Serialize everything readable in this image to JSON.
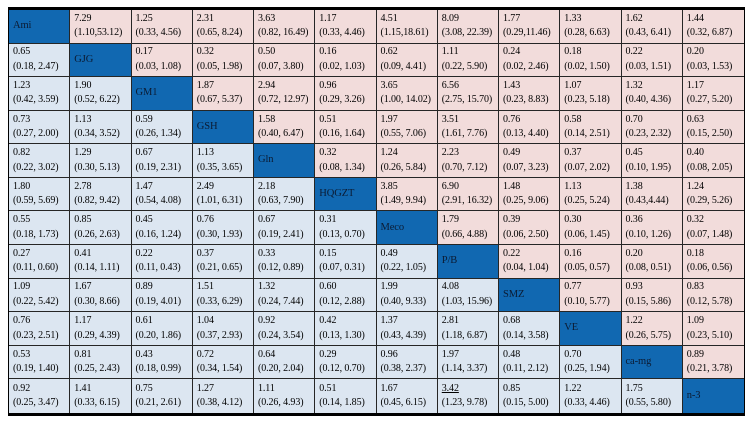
{
  "colors": {
    "diagonal_cell": "#1168B1",
    "lower_triangle": "#DCE6F1",
    "upper_triangle": "#F2DCDB",
    "grid_line": "#262626",
    "outer_border": "#000000",
    "cell_text": "#000000"
  },
  "chart_data": {
    "type": "table",
    "layout": "12x12 league table; diagonal = treatment labels; each off-diagonal cell = estimate with 95% CI; lower triangle light blue, upper triangle pink; thick black top and bottom border",
    "treatments": [
      "Ami",
      "GJG",
      "GM1",
      "GSH",
      "Gln",
      "HQGZT",
      "Meco",
      "P/B",
      "SMZ",
      "VE",
      "ca-mg",
      "n-3"
    ],
    "matrix": [
      [
        {
          "label": "Ami"
        },
        {
          "v": "7.29",
          "ci": "(1.10,53.12)"
        },
        {
          "v": "1.25",
          "ci": "(0.33, 4.56)"
        },
        {
          "v": "2.31",
          "ci": "(0.65, 8.24)"
        },
        {
          "v": "3.63",
          "ci": "(0.82, 16.49)"
        },
        {
          "v": "1.17",
          "ci": "(0.33, 4.46)"
        },
        {
          "v": "4.51",
          "ci": "(1.15,18.61)"
        },
        {
          "v": "8.09",
          "ci": "(3.08, 22.39)"
        },
        {
          "v": "1.77",
          "ci": "(0.29,11.46)"
        },
        {
          "v": "1.33",
          "ci": "(0.28, 6.63)"
        },
        {
          "v": "1.62",
          "ci": "(0.43, 6.41)"
        },
        {
          "v": "1.44",
          "ci": "(0.32, 6.87)"
        }
      ],
      [
        {
          "v": "0.65",
          "ci": "(0.18, 2.47)"
        },
        {
          "label": "GJG"
        },
        {
          "v": "0.17",
          "ci": "(0.03, 1.08)"
        },
        {
          "v": "0.32",
          "ci": "(0.05, 1.98)"
        },
        {
          "v": "0.50",
          "ci": "(0.07, 3.80)"
        },
        {
          "v": "0.16",
          "ci": "(0.02, 1.03)"
        },
        {
          "v": "0.62",
          "ci": "(0.09, 4.41)"
        },
        {
          "v": "1.11",
          "ci": "(0.22, 5.90)"
        },
        {
          "v": "0.24",
          "ci": "(0.02, 2.46)"
        },
        {
          "v": "0.18",
          "ci": "(0.02, 1.50)"
        },
        {
          "v": "0.22",
          "ci": "(0.03, 1.51)"
        },
        {
          "v": "0.20",
          "ci": "(0.03, 1.53)"
        }
      ],
      [
        {
          "v": "1.23",
          "ci": "(0.42, 3.59)"
        },
        {
          "v": "1.90",
          "ci": "(0.52, 6.22)"
        },
        {
          "label": "GM1"
        },
        {
          "v": "1.87",
          "ci": "(0.67, 5.37)"
        },
        {
          "v": "2.94",
          "ci": "(0.72, 12.97)"
        },
        {
          "v": "0.96",
          "ci": "(0.29, 3.26)"
        },
        {
          "v": "3.65",
          "ci": "(1.00, 14.02)"
        },
        {
          "v": "6.56",
          "ci": "(2.75, 15.70)"
        },
        {
          "v": "1.43",
          "ci": "(0.23, 8.83)"
        },
        {
          "v": "1.07",
          "ci": "(0.23, 5.18)"
        },
        {
          "v": "1.32",
          "ci": "(0.40, 4.36)"
        },
        {
          "v": "1.17",
          "ci": "(0.27, 5.20)"
        }
      ],
      [
        {
          "v": "0.73",
          "ci": "(0.27, 2.00)"
        },
        {
          "v": "1.13",
          "ci": "(0.34, 3.52)"
        },
        {
          "v": "0.59",
          "ci": "(0.26, 1.34)"
        },
        {
          "label": "GSH"
        },
        {
          "v": "1.58",
          "ci": "(0.40, 6.47)"
        },
        {
          "v": "0.51",
          "ci": "(0.16, 1.64)"
        },
        {
          "v": "1.97",
          "ci": "(0.55, 7.06)"
        },
        {
          "v": "3.51",
          "ci": "(1.61, 7.76)"
        },
        {
          "v": "0.76",
          "ci": "(0.13, 4.40)"
        },
        {
          "v": "0.58",
          "ci": "(0.14, 2.51)"
        },
        {
          "v": "0.70",
          "ci": "(0.23, 2.32)"
        },
        {
          "v": "0.63",
          "ci": "(0.15, 2.50)"
        }
      ],
      [
        {
          "v": "0.82",
          "ci": "(0.22, 3.02)"
        },
        {
          "v": "1.29",
          "ci": "(0.30, 5.13)"
        },
        {
          "v": "0.67",
          "ci": "(0.19, 2.31)"
        },
        {
          "v": "1.13",
          "ci": "(0.35, 3.65)"
        },
        {
          "label": "Gln"
        },
        {
          "v": "0.32",
          "ci": "(0.08, 1.34)"
        },
        {
          "v": "1.24",
          "ci": "(0.26, 5.84)"
        },
        {
          "v": "2.23",
          "ci": "(0.70, 7.12)"
        },
        {
          "v": "0.49",
          "ci": "(0.07, 3.23)"
        },
        {
          "v": "0.37",
          "ci": "(0.07, 2.02)"
        },
        {
          "v": "0.45",
          "ci": "(0.10, 1.95)"
        },
        {
          "v": "0.40",
          "ci": "(0.08, 2.05)"
        }
      ],
      [
        {
          "v": "1.80",
          "ci": "(0.59, 5.69)"
        },
        {
          "v": "2.78",
          "ci": "(0.82, 9.42)"
        },
        {
          "v": "1.47",
          "ci": "(0.54, 4.08)"
        },
        {
          "v": "2.49",
          "ci": "(1.01, 6.31)"
        },
        {
          "v": "2.18",
          "ci": "(0.63, 7.90)"
        },
        {
          "label": "HQGZT"
        },
        {
          "v": "3.85",
          "ci": "(1.49, 9.94)"
        },
        {
          "v": "6.90",
          "ci": "(2.91, 16.32)"
        },
        {
          "v": "1.48",
          "ci": "(0.25, 9.06)"
        },
        {
          "v": "1.13",
          "ci": "(0.25, 5.24)"
        },
        {
          "v": "1.38",
          "ci": "(0.43,4.44)"
        },
        {
          "v": "1.24",
          "ci": "(0.29, 5.26)"
        }
      ],
      [
        {
          "v": "0.55",
          "ci": "(0.18, 1.73)"
        },
        {
          "v": "0.85",
          "ci": "(0.26, 2.63)"
        },
        {
          "v": "0.45",
          "ci": "(0.16, 1.24)"
        },
        {
          "v": "0.76",
          "ci": "(0.30, 1.93)"
        },
        {
          "v": "0.67",
          "ci": "(0.19, 2.41)"
        },
        {
          "v": "0.31",
          "ci": "(0.13, 0.70)"
        },
        {
          "label": "Meco"
        },
        {
          "v": "1.79",
          "ci": "(0.66, 4.88)"
        },
        {
          "v": "0.39",
          "ci": "(0.06, 2.50)"
        },
        {
          "v": "0.30",
          "ci": "(0.06, 1.45)"
        },
        {
          "v": "0.36",
          "ci": "(0.10, 1.26)"
        },
        {
          "v": "0.32",
          "ci": "(0.07, 1.48)"
        }
      ],
      [
        {
          "v": "0.27",
          "ci": "(0.11, 0.60)"
        },
        {
          "v": "0.41",
          "ci": "(0.14, 1.11)"
        },
        {
          "v": "0.22",
          "ci": "(0.11, 0.43)"
        },
        {
          "v": "0.37",
          "ci": "(0.21, 0.65)"
        },
        {
          "v": "0.33",
          "ci": "(0.12, 0.89)"
        },
        {
          "v": "0.15",
          "ci": "(0.07, 0.31)"
        },
        {
          "v": "0.49",
          "ci": "(0.22, 1.05)"
        },
        {
          "label": "P/B"
        },
        {
          "v": "0.22",
          "ci": "(0.04, 1.04)"
        },
        {
          "v": "0.16",
          "ci": "(0.05, 0.57)"
        },
        {
          "v": "0.20",
          "ci": "(0.08, 0.51)"
        },
        {
          "v": "0.18",
          "ci": "(0.06, 0.56)"
        }
      ],
      [
        {
          "v": "1.09",
          "ci": "(0.22, 5.42)"
        },
        {
          "v": "1.67",
          "ci": "(0.30, 8.66)"
        },
        {
          "v": "0.89",
          "ci": "(0.19, 4.01)"
        },
        {
          "v": "1.51",
          "ci": "(0.33, 6.29)"
        },
        {
          "v": "1.32",
          "ci": "(0.24, 7.44)"
        },
        {
          "v": "0.60",
          "ci": "(0.12, 2.88)"
        },
        {
          "v": "1.99",
          "ci": "(0.40, 9.33)"
        },
        {
          "v": "4.08",
          "ci": "(1.03, 15.96)"
        },
        {
          "label": "SMZ"
        },
        {
          "v": "0.77",
          "ci": "(0.10, 5.77)"
        },
        {
          "v": "0.93",
          "ci": "(0.15, 5.86)"
        },
        {
          "v": "0.83",
          "ci": "(0.12, 5.78)"
        }
      ],
      [
        {
          "v": "0.76",
          "ci": "(0.23, 2.51)"
        },
        {
          "v": "1.17",
          "ci": "(0.29, 4.39)"
        },
        {
          "v": "0.61",
          "ci": "(0.20, 1.86)"
        },
        {
          "v": "1.04",
          "ci": "(0.37, 2.93)"
        },
        {
          "v": "0.92",
          "ci": "(0.24, 3.54)"
        },
        {
          "v": "0.42",
          "ci": "(0.13, 1.30)"
        },
        {
          "v": "1.37",
          "ci": "(0.43, 4.39)"
        },
        {
          "v": "2.81",
          "ci": "(1.18, 6.87)"
        },
        {
          "v": "0.68",
          "ci": "(0.14, 3.58)"
        },
        {
          "label": "VE"
        },
        {
          "v": "1.22",
          "ci": "(0.26, 5.75)"
        },
        {
          "v": "1.09",
          "ci": "(0.23, 5.10)"
        }
      ],
      [
        {
          "v": "0.53",
          "ci": "(0.19, 1.40)"
        },
        {
          "v": "0.81",
          "ci": "(0.25, 2.43)"
        },
        {
          "v": "0.43",
          "ci": "(0.18, 0.99)"
        },
        {
          "v": "0.72",
          "ci": "(0.34, 1.54)"
        },
        {
          "v": "0.64",
          "ci": "(0.20, 2.04)"
        },
        {
          "v": "0.29",
          "ci": "(0.12, 0.70)"
        },
        {
          "v": "0.96",
          "ci": "(0.38, 2.37)"
        },
        {
          "v": "1.97",
          "ci": "(1.14, 3.37)"
        },
        {
          "v": "0.48",
          "ci": "(0.11, 2.12)"
        },
        {
          "v": "0.70",
          "ci": "(0.25, 1.94)"
        },
        {
          "label": "ca-mg"
        },
        {
          "v": "0.89",
          "ci": "(0.21, 3.78)"
        }
      ],
      [
        {
          "v": "0.92",
          "ci": "(0.25, 3.47)"
        },
        {
          "v": "1.41",
          "ci": "(0.33, 6.15)"
        },
        {
          "v": "0.75",
          "ci": "(0.21, 2.61)"
        },
        {
          "v": "1.27",
          "ci": "(0.38, 4.12)"
        },
        {
          "v": "1.11",
          "ci": "(0.26, 4.93)"
        },
        {
          "v": "0.51",
          "ci": "(0.14, 1.85)"
        },
        {
          "v": "1.67",
          "ci": "(0.45, 6.15)"
        },
        {
          "v": "3.42",
          "ci": "(1.23, 9.78)",
          "u": true
        },
        {
          "v": "0.85",
          "ci": "(0.15, 5.00)"
        },
        {
          "v": "1.22",
          "ci": "(0.33, 4.46)"
        },
        {
          "v": "1.75",
          "ci": "(0.55, 5.80)"
        },
        {
          "label": "n-3"
        }
      ]
    ]
  }
}
